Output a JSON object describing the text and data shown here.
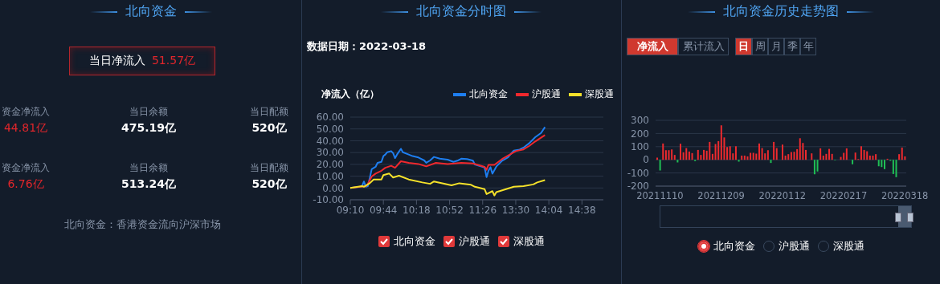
{
  "chart_data": [
    {
      "type": "other",
      "title": "北向资金",
      "annotations": [
        "当日净流入",
        "51.57亿",
        "资金净流入",
        "44.81亿",
        "当日余额",
        "475.19亿",
        "当日配额",
        "520亿",
        "资金净流入",
        "6.76亿",
        "当日余额",
        "513.24亿",
        "当日配额",
        "520亿",
        "北向资金：香港资金流向沪深市场"
      ]
    },
    {
      "type": "line",
      "title": "北向资金分时图",
      "annotations": [
        "数据日期：2022-03-18"
      ],
      "ylabel": "净流入（亿）",
      "grid": "y",
      "legend": "top right",
      "marker": "none",
      "line_style": "solid",
      "categories": [
        "09:10",
        null,
        null,
        null,
        null,
        null,
        null,
        null,
        null,
        null,
        null,
        null,
        null,
        null,
        null,
        null,
        null,
        "09:44",
        null,
        null,
        null,
        null,
        null,
        null,
        null,
        null,
        null,
        null,
        null,
        null,
        null,
        null,
        null,
        null,
        "10:18",
        null,
        null,
        null,
        null,
        null,
        null,
        null,
        null,
        null,
        null,
        null,
        null,
        null,
        null,
        null,
        null,
        "10:52",
        null,
        null,
        null,
        null,
        null,
        null,
        null,
        null,
        null,
        null,
        null,
        null,
        null,
        null,
        null,
        null,
        "11:26",
        null,
        null,
        null,
        null,
        null,
        null,
        null,
        null,
        null,
        null,
        null,
        null,
        null,
        null,
        null,
        null,
        "13:30",
        null,
        null,
        null,
        null,
        null,
        null,
        null,
        null,
        null,
        null,
        null,
        null,
        null,
        null,
        null,
        null,
        "14:04",
        null,
        null,
        null,
        null,
        null,
        null,
        null,
        null,
        null,
        null,
        null,
        null,
        null,
        null,
        null,
        null,
        "14:38",
        null,
        null,
        null,
        null,
        null,
        null,
        null,
        null,
        null,
        null,
        null
      ],
      "ylim": [
        -10,
        60
      ],
      "yticks": [
        {
          "value": -10,
          "label": "-10.00"
        },
        {
          "value": 0,
          "label": "0.00"
        },
        {
          "value": 10,
          "label": "10.00"
        },
        {
          "value": 20,
          "label": "20.00"
        },
        {
          "value": 30,
          "label": "30.00"
        },
        {
          "value": 40,
          "label": "40.00"
        },
        {
          "value": 50,
          "label": "50.00"
        },
        {
          "value": 60,
          "label": "60.00"
        }
      ],
      "series": [
        {
          "name": "北向资金",
          "color": "#1e7ef0",
          "values": [
            0,
            null,
            null,
            null,
            null,
            1.0,
            1.5,
            5.5,
            1.0,
            1.5,
            8.4,
            15.9,
            null,
            17.9,
            21.3,
            null,
            22.1,
            27.0,
            28.3,
            30.3,
            null,
            31.2,
            29.5,
            25.3,
            28.3,
            null,
            33.2,
            30.3,
            null,
            null,
            28.3,
            null,
            27.0,
            null,
            null,
            25.8,
            null,
            null,
            23.3,
            21.3,
            null,
            23.3,
            null,
            26.3,
            null,
            null,
            24.8,
            null,
            null,
            null,
            24.0,
            null,
            null,
            22.1,
            null,
            23.1,
            null,
            24.8,
            null,
            null,
            24.5,
            null,
            null,
            23.1,
            19.8,
            null,
            null,
            null,
            null,
            17.4,
            9.2,
            14.6,
            17.6,
            12.1,
            null,
            18.1,
            null,
            null,
            23.1,
            null,
            null,
            26.0,
            null,
            null,
            31.7,
            null,
            null,
            32.5,
            null,
            34.2,
            null,
            null,
            38.0,
            null,
            null,
            43.0,
            null,
            null,
            46.6,
            null,
            51.6,
            null,
            null,
            null,
            null,
            null,
            null,
            null,
            null,
            null,
            null,
            null,
            null,
            null,
            null,
            null,
            null,
            null,
            null,
            null,
            null,
            null,
            null,
            null,
            null,
            null,
            null,
            null,
            null,
            null,
            null
          ]
        },
        {
          "name": "沪股通",
          "color": "#f0282d",
          "values": [
            0,
            null,
            null,
            null,
            null,
            null,
            null,
            null,
            1.5,
            3.5,
            null,
            9.7,
            null,
            12.2,
            null,
            null,
            14.6,
            null,
            17.1,
            null,
            null,
            18.8,
            null,
            17.1,
            null,
            null,
            22.6,
            null,
            null,
            null,
            21.3,
            null,
            null,
            null,
            null,
            20.3,
            null,
            null,
            null,
            18.3,
            null,
            null,
            null,
            null,
            21.3,
            null,
            null,
            null,
            null,
            null,
            20.3,
            null,
            null,
            null,
            null,
            null,
            null,
            21.3,
            null,
            null,
            null,
            null,
            null,
            20.8,
            null,
            null,
            null,
            null,
            null,
            17.9,
            15.4,
            19.6,
            null,
            null,
            19.6,
            null,
            null,
            null,
            24.5,
            null,
            null,
            null,
            28.3,
            null,
            null,
            31.2,
            null,
            null,
            null,
            32.7,
            null,
            null,
            35.7,
            null,
            null,
            39.4,
            null,
            null,
            null,
            null,
            44.8,
            null,
            null,
            null,
            null,
            null,
            null,
            null,
            null,
            null,
            null,
            null,
            null,
            null,
            null,
            null,
            null,
            null,
            null,
            null,
            null,
            null,
            null,
            null,
            null,
            null,
            null,
            null,
            null,
            null,
            null
          ]
        },
        {
          "name": "深股通",
          "color": "#f5e12a",
          "values": [
            0,
            null,
            null,
            null,
            null,
            null,
            1.5,
            1.0,
            null,
            null,
            4.0,
            null,
            7.2,
            null,
            null,
            null,
            7.2,
            10.9,
            null,
            null,
            12.2,
            null,
            8.9,
            null,
            null,
            10.4,
            null,
            null,
            null,
            null,
            7.2,
            null,
            null,
            null,
            null,
            null,
            null,
            4.7,
            null,
            null,
            null,
            3.5,
            null,
            5.5,
            null,
            null,
            null,
            null,
            null,
            null,
            null,
            null,
            2.2,
            null,
            null,
            null,
            4.0,
            null,
            null,
            null,
            null,
            null,
            2.7,
            null,
            1.0,
            null,
            null,
            null,
            null,
            -1.0,
            -5.2,
            null,
            null,
            -2.7,
            -6.4,
            -3.5,
            null,
            null,
            null,
            null,
            -1.0,
            null,
            null,
            null,
            1.0,
            null,
            null,
            null,
            null,
            1.5,
            null,
            null,
            null,
            null,
            3.0,
            null,
            4.7,
            null,
            null,
            null,
            6.7,
            null,
            null,
            null,
            null,
            null,
            null,
            null,
            null,
            null,
            null,
            null,
            null,
            null,
            null,
            null,
            null,
            null,
            null,
            null,
            null,
            null,
            null,
            null,
            null,
            null,
            null,
            null,
            null,
            null,
            null
          ]
        }
      ]
    },
    {
      "type": "bar",
      "title": "北向资金历史走势图",
      "annotations": [
        "净流入",
        "累计流入",
        "日",
        "周",
        "月",
        "季",
        "年",
        "沪股通",
        "深股通"
      ],
      "grid": "y",
      "legend": "bottom",
      "categories": [
        null,
        "20211110",
        null,
        null,
        null,
        null,
        null,
        null,
        null,
        null,
        null,
        null,
        null,
        null,
        null,
        null,
        null,
        null,
        null,
        null,
        null,
        null,
        "20211209",
        null,
        null,
        null,
        null,
        null,
        null,
        null,
        null,
        null,
        null,
        null,
        null,
        null,
        null,
        null,
        null,
        null,
        null,
        null,
        null,
        "20220112",
        null,
        null,
        null,
        null,
        null,
        null,
        null,
        null,
        null,
        null,
        null,
        null,
        null,
        null,
        null,
        null,
        null,
        null,
        null,
        null,
        "20220217",
        null,
        null,
        null,
        null,
        null,
        null,
        null,
        null,
        null,
        null,
        null,
        null,
        null,
        null,
        null,
        null,
        null,
        null,
        null,
        null,
        "20220318"
      ],
      "ylim": [
        -200,
        300
      ],
      "yticks": [
        -200,
        -100,
        0,
        100,
        200,
        300
      ],
      "series": [
        {
          "name": "北向资金",
          "values": [
            16,
            -81,
            124,
            73,
            73,
            79,
            37,
            -20,
            122,
            57,
            89,
            63,
            51,
            -10,
            75,
            37,
            75,
            69,
            136,
            45,
            120,
            142,
            262,
            170,
            97,
            103,
            49,
            103,
            -14,
            32,
            32,
            26,
            53,
            53,
            47,
            124,
            89,
            49,
            73,
            -24,
            136,
            89,
            0,
            116,
            32,
            43,
            59,
            61,
            81,
            164,
            128,
            75,
            0,
            49,
            -110,
            -89,
            87,
            32,
            45,
            83,
            45,
            -4,
            0,
            22,
            53,
            87,
            0,
            -34,
            55,
            6,
            103,
            75,
            65,
            32,
            32,
            43,
            -49,
            -55,
            -71,
            8,
            -8,
            -108,
            -132,
            43,
            93,
            26
          ],
          "colors": [
            "#ee2a2e",
            "#1fbf55",
            "#ee2a2e",
            "#ee2a2e",
            "#ee2a2e",
            "#ee2a2e",
            "#ee2a2e",
            "#1fbf55",
            "#ee2a2e",
            "#ee2a2e",
            "#ee2a2e",
            "#ee2a2e",
            "#ee2a2e",
            "#1fbf55",
            "#ee2a2e",
            "#ee2a2e",
            "#ee2a2e",
            "#ee2a2e",
            "#ee2a2e",
            "#ee2a2e",
            "#ee2a2e",
            "#ee2a2e",
            "#ee2a2e",
            "#ee2a2e",
            "#ee2a2e",
            "#ee2a2e",
            "#ee2a2e",
            "#ee2a2e",
            "#1fbf55",
            "#ee2a2e",
            "#ee2a2e",
            "#ee2a2e",
            "#ee2a2e",
            "#ee2a2e",
            "#ee2a2e",
            "#ee2a2e",
            "#ee2a2e",
            "#ee2a2e",
            "#ee2a2e",
            "#1fbf55",
            "#ee2a2e",
            "#ee2a2e",
            "#ee2a2e",
            "#ee2a2e",
            "#ee2a2e",
            "#ee2a2e",
            "#ee2a2e",
            "#ee2a2e",
            "#ee2a2e",
            "#ee2a2e",
            "#ee2a2e",
            "#ee2a2e",
            "#ee2a2e",
            "#ee2a2e",
            "#1fbf55",
            "#1fbf55",
            "#ee2a2e",
            "#ee2a2e",
            "#ee2a2e",
            "#ee2a2e",
            "#ee2a2e",
            "#1fbf55",
            "#ee2a2e",
            "#ee2a2e",
            "#ee2a2e",
            "#ee2a2e",
            "#ee2a2e",
            "#1fbf55",
            "#ee2a2e",
            "#ee2a2e",
            "#ee2a2e",
            "#ee2a2e",
            "#ee2a2e",
            "#ee2a2e",
            "#ee2a2e",
            "#ee2a2e",
            "#1fbf55",
            "#1fbf55",
            "#1fbf55",
            "#ee2a2e",
            "#1fbf55",
            "#1fbf55",
            "#1fbf55",
            "#ee2a2e",
            "#ee2a2e",
            "#ee2a2e"
          ]
        }
      ]
    }
  ]
}
